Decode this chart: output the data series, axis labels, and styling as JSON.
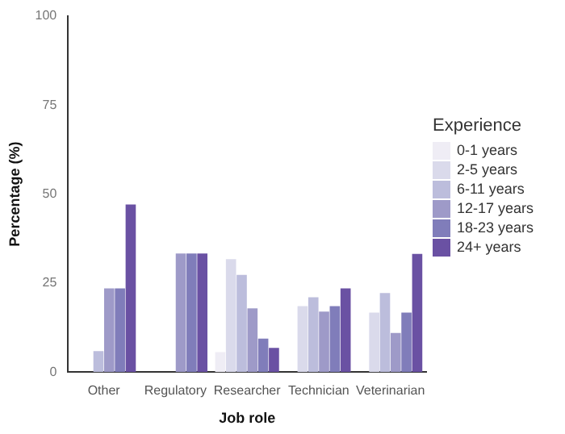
{
  "chart_data": {
    "type": "bar",
    "xlabel": "Job role",
    "ylabel": "Percentage (%)",
    "legend_title": "Experience",
    "legend": "right",
    "categories": [
      "Other",
      "Regulatory",
      "Researcher",
      "Technician",
      "Veterinarian"
    ],
    "series": [
      {
        "name": "0-1 years",
        "color": "#efedf5",
        "values": [
          0,
          0,
          5.6,
          0,
          0
        ]
      },
      {
        "name": "2-5 years",
        "color": "#dadaeb",
        "values": [
          0,
          0,
          31.7,
          18.5,
          16.7
        ]
      },
      {
        "name": "6-11 years",
        "color": "#bcbddc",
        "values": [
          5.9,
          0,
          27.3,
          21,
          22.2
        ]
      },
      {
        "name": "12-17 years",
        "color": "#9e9ac8",
        "values": [
          23.5,
          33.3,
          17.9,
          17,
          11
        ]
      },
      {
        "name": "18-23 years",
        "color": "#807dba",
        "values": [
          23.5,
          33.3,
          9.4,
          18.5,
          16.7
        ]
      },
      {
        "name": "24+ years",
        "color": "#6a51a3",
        "values": [
          47.1,
          33.3,
          6.8,
          23.5,
          33.2
        ]
      }
    ],
    "ylim": [
      0,
      100
    ],
    "yticks": [
      0,
      25,
      50,
      75,
      100
    ],
    "grid": false
  }
}
